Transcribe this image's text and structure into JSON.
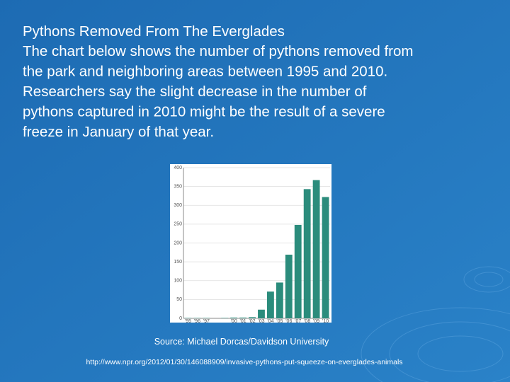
{
  "slide": {
    "title": "Pythons Removed From The Everglades",
    "body": [
      "The chart below shows the number of pythons removed from",
      "the park and neighboring areas between 1995 and 2010.",
      "Researchers say the slight decrease in the number of",
      "pythons captured in 2010 might be the result of a severe",
      "freeze in January of that year."
    ],
    "source": "Source: Michael Dorcas/Davidson University",
    "url": "http://www.npr.org/2012/01/30/146088909/invasive-pythons-put-squeeze-on-everglades-animals"
  },
  "chart_data": {
    "type": "bar",
    "categories": [
      "'95",
      "'96",
      "'97",
      null,
      null,
      "'00",
      "'01",
      "'02",
      "'03",
      "'04",
      "'05",
      "'06",
      "'07",
      "'08",
      "'09",
      "'10"
    ],
    "values": [
      1,
      1,
      1,
      0,
      1,
      2,
      2,
      3,
      23,
      71,
      95,
      169,
      248,
      343,
      367,
      322
    ],
    "color": "#2b8c7c",
    "ylim": [
      0,
      400
    ],
    "yticks": [
      0,
      50,
      100,
      150,
      200,
      250,
      300,
      350,
      400
    ],
    "grid": true
  }
}
